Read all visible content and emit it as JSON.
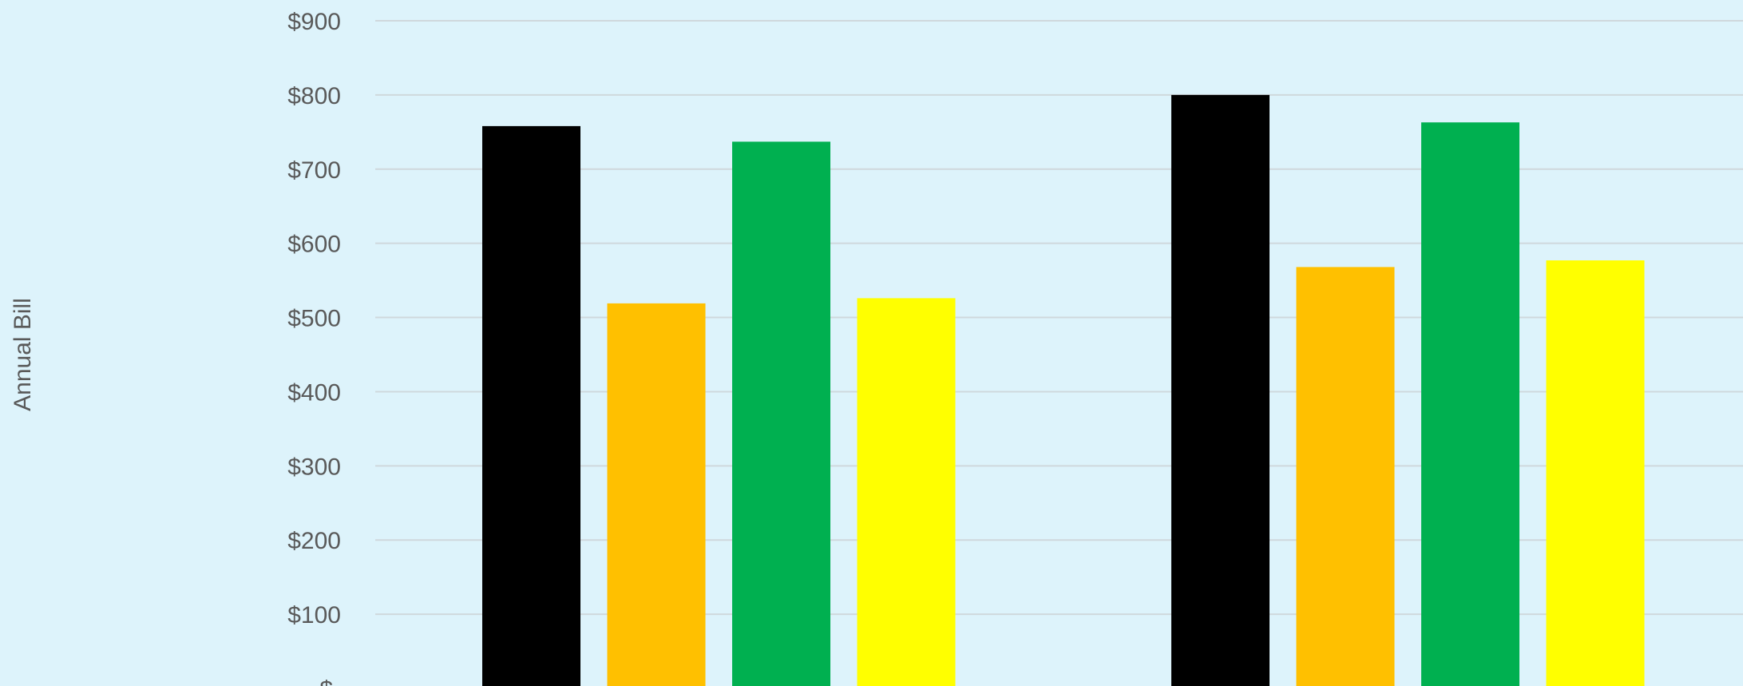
{
  "chart_data": {
    "type": "bar",
    "ylabel": "Annual Bill",
    "ylim": [
      0,
      900
    ],
    "yticks": [
      0,
      100,
      200,
      300,
      400,
      500,
      600,
      700,
      800,
      900
    ],
    "ytick_labels": [
      "$-",
      "$100",
      "$200",
      "$300",
      "$400",
      "$500",
      "$600",
      "$700",
      "$800",
      "$900"
    ],
    "grid": true,
    "legend": "not visible",
    "groups": [
      {
        "bars": [
          {
            "value": 758,
            "color": "#000000"
          },
          {
            "value": 519,
            "color": "#ffc000"
          },
          {
            "value": 737,
            "color": "#00b050"
          },
          {
            "value": 526,
            "color": "#ffff00"
          }
        ]
      },
      {
        "bars": [
          {
            "value": 800,
            "color": "#000000"
          },
          {
            "value": 568,
            "color": "#ffc000"
          },
          {
            "value": 763,
            "color": "#00b050"
          },
          {
            "value": 577,
            "color": "#ffff00"
          }
        ]
      }
    ]
  },
  "colors": {
    "background": "#ddf3fb",
    "gridline": "#cfd8dc",
    "text": "#595959"
  }
}
